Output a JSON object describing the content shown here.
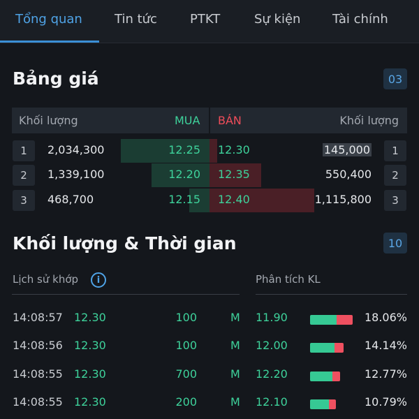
{
  "tabs": [
    "Tổng quan",
    "Tin tức",
    "PTKT",
    "Sự kiện",
    "Tài chính"
  ],
  "price_board": {
    "title": "Bảng giá",
    "badge": "03",
    "header": {
      "buy_volume": "Khối lượng",
      "buy": "MUA",
      "sell": "BÁN",
      "sell_volume": "Khối lượng"
    },
    "rows": [
      {
        "level": "1",
        "buy_volume": "2,034,300",
        "buy_price": "12.25",
        "sell_price": "12.30",
        "sell_volume": "145,000",
        "sell_level": "1",
        "buy_depth": 0.61,
        "sell_depth": 0.06
      },
      {
        "level": "2",
        "buy_volume": "1,339,100",
        "buy_price": "12.20",
        "sell_price": "12.35",
        "sell_volume": "550,400",
        "sell_level": "2",
        "buy_depth": 0.4,
        "sell_depth": 0.4
      },
      {
        "level": "3",
        "buy_volume": "468,700",
        "buy_price": "12.15",
        "sell_price": "12.40",
        "sell_volume": "1,115,800",
        "sell_level": "3",
        "buy_depth": 0.14,
        "sell_depth": 0.81
      }
    ]
  },
  "time_sales": {
    "title": "Khối lượng & Thời gian",
    "badge": "10",
    "history_label": "Lịch sử khớp",
    "analysis_label": "Phân tích KL",
    "info_glyph": "i",
    "rows": [
      {
        "time": "14:08:57",
        "price": "12.30",
        "volume": "100",
        "side": "M",
        "level_price": "11.90",
        "percent": "18.06%",
        "buy_ratio": 0.63,
        "total_ratio": 1.0
      },
      {
        "time": "14:08:56",
        "price": "12.30",
        "volume": "100",
        "side": "M",
        "level_price": "12.00",
        "percent": "14.14%",
        "buy_ratio": 0.58,
        "total_ratio": 0.78
      },
      {
        "time": "14:08:55",
        "price": "12.30",
        "volume": "700",
        "side": "M",
        "level_price": "12.20",
        "percent": "12.77%",
        "buy_ratio": 0.52,
        "total_ratio": 0.7
      },
      {
        "time": "14:08:55",
        "price": "12.30",
        "volume": "200",
        "side": "M",
        "level_price": "12.10",
        "percent": "10.79%",
        "buy_ratio": 0.45,
        "total_ratio": 0.6
      }
    ]
  },
  "colors": {
    "accent": "#4fa3e6",
    "buy": "#3ed29b",
    "sell": "#f04d5a",
    "background": "#14171c"
  }
}
